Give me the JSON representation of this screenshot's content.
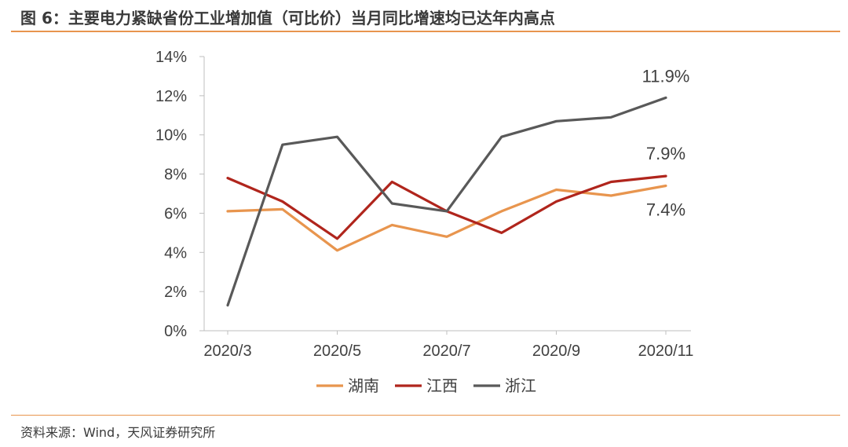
{
  "title": "图 6：主要电力紧缺省份工业增加值（可比价）当月同比增速均已达年内高点",
  "source": "资料来源：Wind，天风证券研究所",
  "chart_data": {
    "type": "line",
    "x": [
      "2020/3",
      "2020/4",
      "2020/5",
      "2020/6",
      "2020/7",
      "2020/8",
      "2020/9",
      "2020/10",
      "2020/11"
    ],
    "x_tick_labels": [
      "2020/3",
      "2020/5",
      "2020/7",
      "2020/9",
      "2020/11"
    ],
    "y_tick_labels": [
      "0%",
      "2%",
      "4%",
      "6%",
      "8%",
      "10%",
      "12%",
      "14%"
    ],
    "ylim": [
      0,
      14
    ],
    "y_unit": "%",
    "grid": false,
    "legend_position": "bottom",
    "series": [
      {
        "name": "湖南",
        "color": "#e8954e",
        "values": [
          6.1,
          6.2,
          4.1,
          5.4,
          4.8,
          6.1,
          7.2,
          6.9,
          7.4
        ]
      },
      {
        "name": "江西",
        "color": "#b0251c",
        "values": [
          7.8,
          6.6,
          4.7,
          7.6,
          6.1,
          5.0,
          6.6,
          7.6,
          7.9
        ]
      },
      {
        "name": "浙江",
        "color": "#595959",
        "values": [
          1.3,
          9.5,
          9.9,
          6.5,
          6.1,
          9.9,
          10.7,
          10.9,
          11.9
        ]
      }
    ],
    "annotations": [
      {
        "text": "11.9%",
        "series": "浙江"
      },
      {
        "text": "7.9%",
        "series": "江西"
      },
      {
        "text": "7.4%",
        "series": "湖南"
      }
    ]
  }
}
